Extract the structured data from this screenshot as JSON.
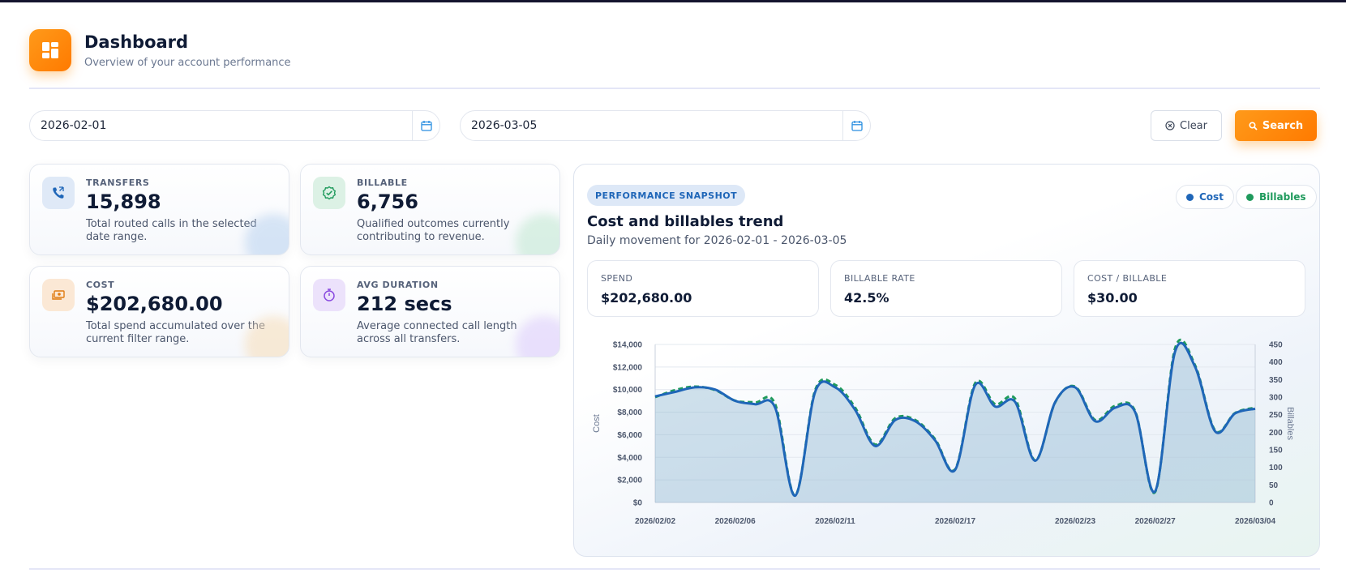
{
  "header": {
    "title": "Dashboard",
    "subtitle": "Overview of your account performance",
    "logo_icon": "dashboard-grid-icon"
  },
  "filters": {
    "start_date": "2026-02-01",
    "end_date": "2026-03-05",
    "clear_label": "Clear",
    "search_label": "Search"
  },
  "stats": [
    {
      "label": "TRANSFERS",
      "value": "15,898",
      "description": "Total routed calls in the selected date range.",
      "icon": "phone-transfer-icon",
      "color": "#1f66b8"
    },
    {
      "label": "BILLABLE",
      "value": "6,756",
      "description": "Qualified outcomes currently contributing to revenue.",
      "icon": "check-badge-icon",
      "color": "#1f9a5c"
    },
    {
      "label": "COST",
      "value": "$202,680.00",
      "description": "Total spend accumulated over the current filter range.",
      "icon": "money-icon",
      "color": "#e07b12"
    },
    {
      "label": "AVG DURATION",
      "value": "212 secs",
      "description": "Average connected call length across all transfers.",
      "icon": "stopwatch-icon",
      "color": "#8a4be0"
    }
  ],
  "panel": {
    "badge": "PERFORMANCE SNAPSHOT",
    "title": "Cost and billables trend",
    "subtitle": "Daily movement for 2026-02-01 - 2026-03-05",
    "legend": [
      {
        "label": "Cost",
        "color": "#1f66b8"
      },
      {
        "label": "Billables",
        "color": "#1f9a5c"
      }
    ],
    "metrics": [
      {
        "label": "SPEND",
        "value": "$202,680.00"
      },
      {
        "label": "BILLABLE RATE",
        "value": "42.5%"
      },
      {
        "label": "COST / BILLABLE",
        "value": "$30.00"
      }
    ]
  },
  "chart_data": {
    "type": "line",
    "title": "",
    "xlabel": "",
    "ylabel": "Cost",
    "y2label": "Billables",
    "ylim": [
      0,
      14000
    ],
    "y2lim": [
      0,
      450
    ],
    "yticks": [
      "$0",
      "$2,000",
      "$4,000",
      "$6,000",
      "$8,000",
      "$10,000",
      "$12,000",
      "$14,000"
    ],
    "y2ticks": [
      "0",
      "50",
      "100",
      "150",
      "200",
      "250",
      "300",
      "350",
      "400",
      "450"
    ],
    "xtick_labels": [
      "2026/02/02",
      "2026/02/06",
      "2026/02/11",
      "2026/02/17",
      "2026/02/23",
      "2026/02/27",
      "2026/03/04"
    ],
    "x": [
      "2026/02/02",
      "2026/02/03",
      "2026/02/04",
      "2026/02/05",
      "2026/02/06",
      "2026/02/07",
      "2026/02/08",
      "2026/02/09",
      "2026/02/10",
      "2026/02/11",
      "2026/02/12",
      "2026/02/13",
      "2026/02/14",
      "2026/02/15",
      "2026/02/16",
      "2026/02/17",
      "2026/02/18",
      "2026/02/19",
      "2026/02/20",
      "2026/02/21",
      "2026/02/22",
      "2026/02/23",
      "2026/02/24",
      "2026/02/25",
      "2026/02/26",
      "2026/02/27",
      "2026/02/28",
      "2026/03/01",
      "2026/03/02",
      "2026/03/03",
      "2026/03/04"
    ],
    "series": [
      {
        "name": "Cost",
        "color": "#1f66b8",
        "style": "solid",
        "axis": "left",
        "fill": true,
        "values": [
          9400,
          9800,
          10200,
          10000,
          9000,
          8700,
          8400,
          600,
          9800,
          10200,
          8200,
          5000,
          7300,
          7200,
          5500,
          2900,
          10400,
          8500,
          8900,
          3700,
          8900,
          10200,
          7200,
          8400,
          8000,
          1000,
          13400,
          12000,
          6300,
          7900,
          8300
        ]
      },
      {
        "name": "Billables",
        "color": "#1f9a5c",
        "style": "dashed",
        "axis": "right",
        "values": [
          300,
          320,
          330,
          320,
          290,
          285,
          280,
          20,
          320,
          335,
          270,
          165,
          240,
          235,
          180,
          95,
          340,
          280,
          295,
          120,
          285,
          330,
          235,
          275,
          260,
          30,
          440,
          390,
          205,
          255,
          270
        ]
      }
    ],
    "grid": true
  }
}
